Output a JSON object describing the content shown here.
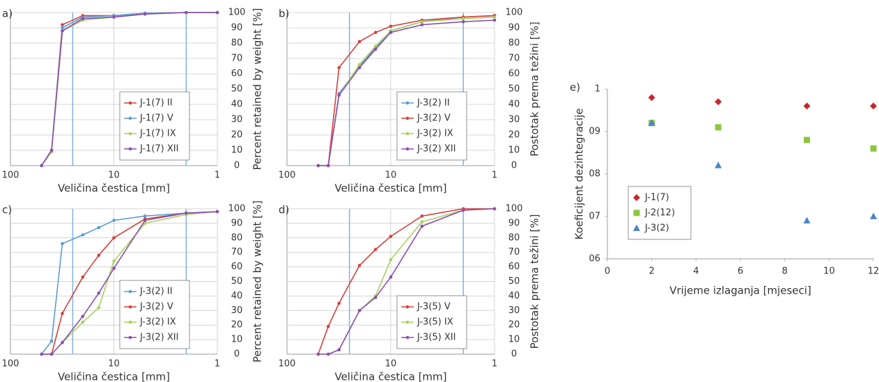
{
  "chart_data": [
    {
      "type": "line",
      "panel_label": "a)",
      "xlabel": "Veličina čestica [mm]",
      "ylabel": "Percent retained by weight [%]",
      "log_x": true,
      "xlim": [
        100,
        1
      ],
      "xticks": [
        100,
        10,
        1
      ],
      "ylim": [
        0,
        100
      ],
      "yticks": [
        0,
        10,
        20,
        30,
        40,
        50,
        60,
        70,
        80,
        90,
        100
      ],
      "yaxis_side": "right",
      "grid": true,
      "legend": "lower right",
      "vlines": [
        25,
        2
      ],
      "vline_color": "#7fb3e0",
      "x": [
        50,
        40,
        31.5,
        20,
        10,
        5,
        2,
        1
      ],
      "series": [
        {
          "name": "J-1(7) II",
          "color": "#d6403a",
          "values": [
            0,
            10,
            92,
            98,
            98,
            99.5,
            100,
            100
          ]
        },
        {
          "name": "J-1(7) V",
          "color": "#5b9bd5",
          "values": [
            0,
            10,
            90,
            97,
            98,
            99.5,
            100,
            100
          ]
        },
        {
          "name": "J-1(7) IX",
          "color": "#a6d25a",
          "values": [
            0,
            9,
            88,
            95,
            97,
            99,
            100,
            100
          ]
        },
        {
          "name": "J-1(7) XII",
          "color": "#8a4fb0",
          "values": [
            0,
            10,
            88,
            96,
            97,
            99,
            100,
            100
          ]
        }
      ]
    },
    {
      "type": "line",
      "panel_label": "b)",
      "xlabel": "Veličina čestica [mm]",
      "ylabel": "Postotak prema težini [%]",
      "log_x": true,
      "xlim": [
        100,
        1
      ],
      "xticks": [
        100,
        10,
        1
      ],
      "ylim": [
        0,
        100
      ],
      "yticks": [
        0,
        10,
        20,
        30,
        40,
        50,
        60,
        70,
        80,
        90,
        100
      ],
      "yaxis_side": "right",
      "grid": true,
      "legend": "lower right",
      "vlines": [
        25,
        2
      ],
      "vline_color": "#7fb3e0",
      "x": [
        50,
        40,
        31.5,
        20,
        14,
        10,
        5,
        2,
        1
      ],
      "series": [
        {
          "name": "J-3(2) II",
          "color": "#5b9bd5",
          "values": [
            0,
            0,
            47,
            65,
            77,
            88,
            94,
            97,
            98
          ]
        },
        {
          "name": "J-3(2) V",
          "color": "#d6403a",
          "values": [
            0,
            0,
            64,
            81,
            87,
            91,
            95,
            97,
            98
          ]
        },
        {
          "name": "J-3(2) IX",
          "color": "#a6d25a",
          "values": [
            0,
            0,
            46,
            66,
            78,
            88,
            94,
            96,
            97
          ]
        },
        {
          "name": "J-3(2) XII",
          "color": "#8a4fb0",
          "values": [
            0,
            0,
            46,
            64,
            76,
            87,
            92,
            94,
            95
          ]
        }
      ]
    },
    {
      "type": "line",
      "panel_label": "c)",
      "xlabel": "Veličina čestica [mm]",
      "ylabel": "Percent retained by weight [%]",
      "log_x": true,
      "xlim": [
        100,
        1
      ],
      "xticks": [
        100,
        10,
        1
      ],
      "ylim": [
        0,
        100
      ],
      "yticks": [
        0,
        10,
        20,
        30,
        40,
        50,
        60,
        70,
        80,
        90,
        100
      ],
      "yaxis_side": "right",
      "grid": true,
      "legend": "lower right",
      "vlines": [
        25,
        2
      ],
      "vline_color": "#7fb3e0",
      "x": [
        50,
        40,
        31.5,
        20,
        14,
        10,
        5,
        2,
        1
      ],
      "series": [
        {
          "name": "J-3(2) II",
          "color": "#5b9bd5",
          "values": [
            0,
            9,
            76,
            82,
            87,
            92,
            95,
            97,
            98
          ]
        },
        {
          "name": "J-3(2) V",
          "color": "#d6403a",
          "values": [
            0,
            0,
            28,
            53,
            68,
            80,
            93,
            97,
            98
          ]
        },
        {
          "name": "J-3(2) IX",
          "color": "#a6d25a",
          "values": [
            0,
            0,
            8,
            22,
            32,
            64,
            90,
            96,
            98
          ]
        },
        {
          "name": "J-3(2) XII",
          "color": "#8a4fb0",
          "values": [
            0,
            0,
            8,
            26,
            42,
            59,
            92,
            97,
            98
          ]
        }
      ]
    },
    {
      "type": "line",
      "panel_label": "d)",
      "xlabel": "Veličina čestica [mm]",
      "ylabel": "Postotak prema težini [%]",
      "log_x": true,
      "xlim": [
        100,
        1
      ],
      "xticks": [
        100,
        10,
        1
      ],
      "ylim": [
        0,
        100
      ],
      "yticks": [
        0,
        10,
        20,
        30,
        40,
        50,
        60,
        70,
        80,
        90,
        100
      ],
      "yaxis_side": "right",
      "grid": true,
      "legend": "lower right",
      "vlines": [
        25,
        2
      ],
      "vline_color": "#7fb3e0",
      "x": [
        50,
        40,
        31.5,
        20,
        14,
        10,
        5,
        2,
        1
      ],
      "series": [
        {
          "name": "J-3(5) V",
          "color": "#d6403a",
          "values": [
            0,
            19,
            35,
            61,
            72,
            81,
            95,
            100,
            100
          ]
        },
        {
          "name": "J-3(5) IX",
          "color": "#a6d25a",
          "values": [
            0,
            0,
            3,
            30,
            40,
            65,
            91,
            99,
            100
          ]
        },
        {
          "name": "J-3(5) XII",
          "color": "#8a4fb0",
          "values": [
            0,
            0,
            3,
            30,
            39,
            53,
            88,
            99,
            100
          ]
        }
      ]
    },
    {
      "type": "scatter",
      "panel_label": "e)",
      "xlabel": "Vrijeme izlaganja [mjeseci]",
      "ylabel": "Koeficijent dezintegracije",
      "xlim": [
        0,
        12
      ],
      "xticks": [
        0,
        2,
        4,
        6,
        8,
        10,
        12
      ],
      "ylim": [
        0.6,
        1
      ],
      "yticks": [
        {
          "value": 0.6,
          "label": "06"
        },
        {
          "value": 0.7,
          "label": "07"
        },
        {
          "value": 0.8,
          "label": "08"
        },
        {
          "value": 0.9,
          "label": "09"
        },
        1
      ],
      "yaxis_side": "left",
      "grid": false,
      "legend": "lower left",
      "series": [
        {
          "name": "J-1(7)",
          "color": "#c8262c",
          "marker": "diamond",
          "x": [
            2,
            5,
            9,
            12
          ],
          "values": [
            0.98,
            0.97,
            0.96,
            0.96
          ]
        },
        {
          "name": "J-2(12)",
          "color": "#8cc63f",
          "marker": "square",
          "x": [
            2,
            5,
            9,
            12
          ],
          "values": [
            0.92,
            0.91,
            0.88,
            0.86
          ]
        },
        {
          "name": "J-3(2)",
          "color": "#4a86c8",
          "marker": "triangle",
          "x": [
            2,
            5,
            9,
            12
          ],
          "values": [
            0.92,
            0.82,
            0.69,
            0.7
          ]
        }
      ]
    }
  ]
}
